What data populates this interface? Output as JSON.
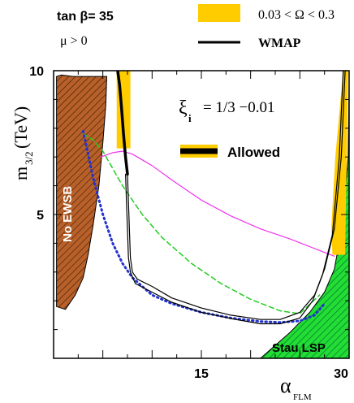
{
  "chart_data": {
    "type": "line",
    "legend_top": {
      "tan_beta": "tan β= 35",
      "mu": "μ > 0",
      "band_label": "0.03 < Ω < 0.3",
      "line_label": "WMAP",
      "band_color": "#ffcc00",
      "line_color": "#000000"
    },
    "annotation": {
      "xi_symbol": "ξ",
      "xi_subscript": "i",
      "xi_value": "= 1/3 −0.01",
      "allowed_label": "Allowed"
    },
    "region_labels": {
      "no_ewsb": "No EWSB",
      "stau_lsp": "Stau LSP"
    },
    "colors": {
      "no_ewsb_fill": "#b8602a",
      "stau_fill": "#22dd33",
      "magenta": "#ee33ee",
      "green_dash": "#22cc22",
      "blue_dot": "#2233cc"
    },
    "axes": {
      "xlabel_main": "α",
      "xlabel_sub": "FLM",
      "ylabel_main": "m",
      "ylabel_sub": "3/2",
      "ylabel_unit": "(TeV)",
      "xlim": [
        0,
        30
      ],
      "ylim": [
        0,
        10
      ],
      "xticks": [
        {
          "value": 15,
          "label": "15"
        },
        {
          "value": 30,
          "label": "30"
        }
      ],
      "yticks": [
        {
          "value": 5,
          "label": "5"
        },
        {
          "value": 10,
          "label": "10"
        }
      ]
    },
    "series": [
      {
        "style": "magenta",
        "x": [
          4.8,
          6,
          7,
          8,
          10,
          12,
          15,
          18,
          21,
          24,
          27,
          28.5
        ],
        "y": [
          7.0,
          7.15,
          7.2,
          7.1,
          6.7,
          6.2,
          5.5,
          4.95,
          4.5,
          4.15,
          3.75,
          3.55
        ]
      },
      {
        "style": "green_dash",
        "x": [
          3.0,
          4,
          5,
          6,
          7,
          9,
          11,
          14,
          17,
          20,
          23,
          25,
          27
        ],
        "y": [
          7.8,
          7.6,
          7.2,
          6.6,
          6.0,
          5.0,
          4.2,
          3.3,
          2.6,
          2.05,
          1.65,
          1.55,
          2.2
        ]
      },
      {
        "style": "blue_dot",
        "x": [
          3.0,
          4,
          5,
          6,
          7,
          8,
          10,
          12,
          15,
          18,
          21,
          23,
          25,
          26.5,
          27.5
        ],
        "y": [
          7.9,
          6.3,
          5.0,
          4.0,
          3.3,
          2.8,
          2.2,
          1.9,
          1.6,
          1.4,
          1.28,
          1.25,
          1.3,
          1.5,
          1.9
        ]
      },
      {
        "style": "wmap_upper",
        "x": [
          7.5,
          7.8,
          8,
          8.5,
          10,
          12,
          15,
          18,
          21,
          23,
          25,
          26.5,
          27.5,
          28.5,
          29.2,
          29.6
        ],
        "y": [
          6.4,
          3.5,
          3.0,
          2.75,
          2.5,
          2.1,
          1.75,
          1.5,
          1.35,
          1.35,
          1.6,
          2.2,
          3.1,
          4.5,
          7.0,
          10.0
        ]
      },
      {
        "style": "wmap_lower",
        "x": [
          7.3,
          7.6,
          7.8,
          8.3,
          10,
          12,
          15,
          18,
          21,
          23,
          25,
          26.3,
          27.3,
          28.3,
          29.0,
          29.4
        ],
        "y": [
          6.4,
          3.5,
          3.0,
          2.6,
          2.3,
          1.95,
          1.6,
          1.38,
          1.2,
          1.2,
          1.4,
          2.0,
          2.9,
          4.3,
          7.0,
          10.0
        ]
      },
      {
        "style": "wmap_left",
        "x": [
          6.5,
          6.7,
          6.9,
          7.1,
          7.3,
          7.5
        ],
        "y": [
          10.0,
          9.5,
          8.7,
          7.8,
          7.0,
          6.4
        ]
      }
    ],
    "regions": [
      {
        "name": "no_ewsb",
        "x": [
          0.3,
          0.3,
          0.8,
          2.0,
          3.0,
          5.4,
          5.3,
          5.0,
          4.6,
          4.0,
          3.5,
          3.0,
          2.2,
          1.2,
          0.3
        ],
        "y": [
          1.8,
          9.8,
          9.85,
          9.8,
          9.8,
          9.8,
          8.8,
          7.5,
          6.0,
          4.6,
          3.6,
          2.8,
          2.2,
          1.7,
          1.8
        ]
      },
      {
        "name": "stau_lsp",
        "x": [
          21.0,
          24.0,
          26.0,
          27.5,
          28.5,
          29.3,
          29.9,
          30.0,
          30.0
        ],
        "y": [
          0.0,
          0.9,
          1.6,
          2.3,
          3.1,
          4.6,
          7.0,
          9.6,
          0.0
        ]
      },
      {
        "name": "omega_band_left",
        "x": [
          6.4,
          7.8,
          7.8,
          6.4
        ],
        "y": [
          10.0,
          10.0,
          7.3,
          7.3
        ]
      },
      {
        "name": "omega_band_right",
        "x": [
          28.3,
          29.6,
          29.9,
          29.4,
          28.6,
          28.2
        ],
        "y": [
          3.6,
          3.6,
          10.0,
          10.0,
          7.0,
          4.6
        ]
      }
    ]
  }
}
